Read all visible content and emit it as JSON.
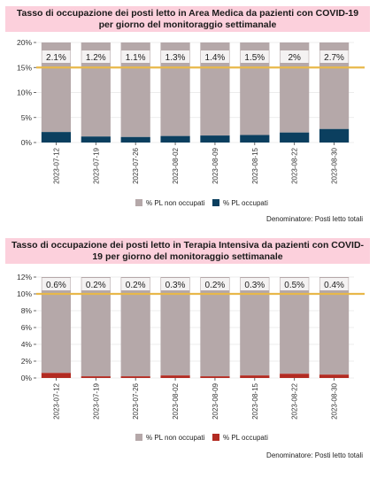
{
  "chart_data": [
    {
      "type": "bar",
      "stacked": true,
      "title": "Tasso di occupazione dei posti letto in Area Medica da pazienti con COVID-19 per giorno del monitoraggio settimanale",
      "categories": [
        "2023-07-12",
        "2023-07-19",
        "2023-07-26",
        "2023-08-02",
        "2023-08-09",
        "2023-08-15",
        "2023-08-22",
        "2023-08-30"
      ],
      "series": [
        {
          "name": "% PL non occupati",
          "color": "#b5a8a9"
        },
        {
          "name": "% PL occupati",
          "color": "#0b3f5f",
          "values": [
            2.1,
            1.2,
            1.1,
            1.3,
            1.4,
            1.5,
            2.0,
            2.7
          ]
        }
      ],
      "bar_labels": [
        "2.1%",
        "1.2%",
        "1.1%",
        "1.3%",
        "1.4%",
        "1.5%",
        "2%",
        "2.7%"
      ],
      "ylim": [
        0,
        20
      ],
      "yticks": [
        0,
        5,
        10,
        15,
        20
      ],
      "ytick_labels": [
        "0%",
        "5%",
        "10%",
        "15%",
        "20%"
      ],
      "threshold": 15,
      "threshold_color": "#e8b84a",
      "grid": true,
      "legend_position": "bottom",
      "note": "Denominatore: Posti letto totali"
    },
    {
      "type": "bar",
      "stacked": true,
      "title": "Tasso di occupazione dei posti letto in Terapia Intensiva da pazienti con COVID-19 per giorno del monitoraggio settimanale",
      "categories": [
        "2023-07-12",
        "2023-07-19",
        "2023-07-26",
        "2023-08-02",
        "2023-08-09",
        "2023-08-15",
        "2023-08-22",
        "2023-08-30"
      ],
      "series": [
        {
          "name": "% PL non occupati",
          "color": "#b5a8a9"
        },
        {
          "name": "% PL occupati",
          "color": "#b22b22",
          "values": [
            0.6,
            0.2,
            0.2,
            0.3,
            0.2,
            0.3,
            0.5,
            0.4
          ]
        }
      ],
      "bar_labels": [
        "0.6%",
        "0.2%",
        "0.2%",
        "0.3%",
        "0.2%",
        "0.3%",
        "0.5%",
        "0.4%"
      ],
      "ylim": [
        0,
        12
      ],
      "yticks": [
        0,
        2,
        4,
        6,
        8,
        10,
        12
      ],
      "ytick_labels": [
        "0%",
        "2%",
        "4%",
        "6%",
        "8%",
        "10%",
        "12%"
      ],
      "threshold": 10,
      "threshold_color": "#e8b84a",
      "grid": true,
      "legend_position": "bottom",
      "note": "Denominatore: Posti letto totali"
    }
  ]
}
